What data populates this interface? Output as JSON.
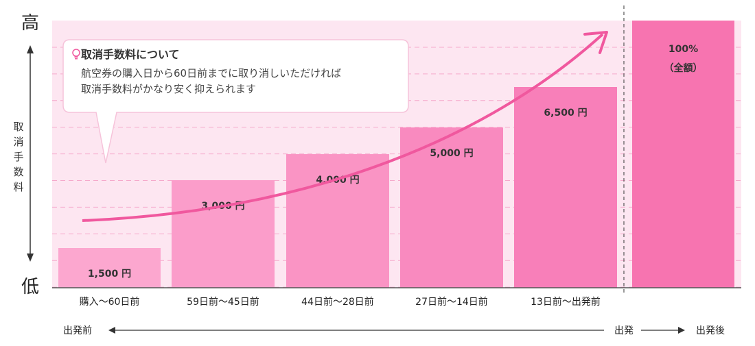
{
  "chart_data": {
    "type": "bar",
    "ylabel": "取消手数料",
    "y_high_label": "高",
    "y_low_label": "低",
    "categories": [
      "購入〜60日前",
      "59日前〜45日前",
      "44日前〜28日前",
      "27日前〜14日前",
      "13日前〜出発前",
      ""
    ],
    "values": [
      1500,
      3000,
      4000,
      5000,
      6500,
      null
    ],
    "value_labels": [
      "1,500 円",
      "3,000 円",
      "4,000 円",
      "5,000 円",
      "6,500 円",
      "100%\n（全額）"
    ],
    "colors": [
      "#fca7cf",
      "#fb9dca",
      "#fa94c4",
      "#f98abf",
      "#f87fb9",
      "#f774b0"
    ],
    "timeline": {
      "before": "出発前",
      "departure": "出発",
      "after": "出発後"
    }
  },
  "callout": {
    "title": "取消手数料について",
    "body_lines": [
      "航空券の購入日から60日前までに取り消しいただければ",
      "取消手数料がかなり安く抑えられます"
    ]
  }
}
